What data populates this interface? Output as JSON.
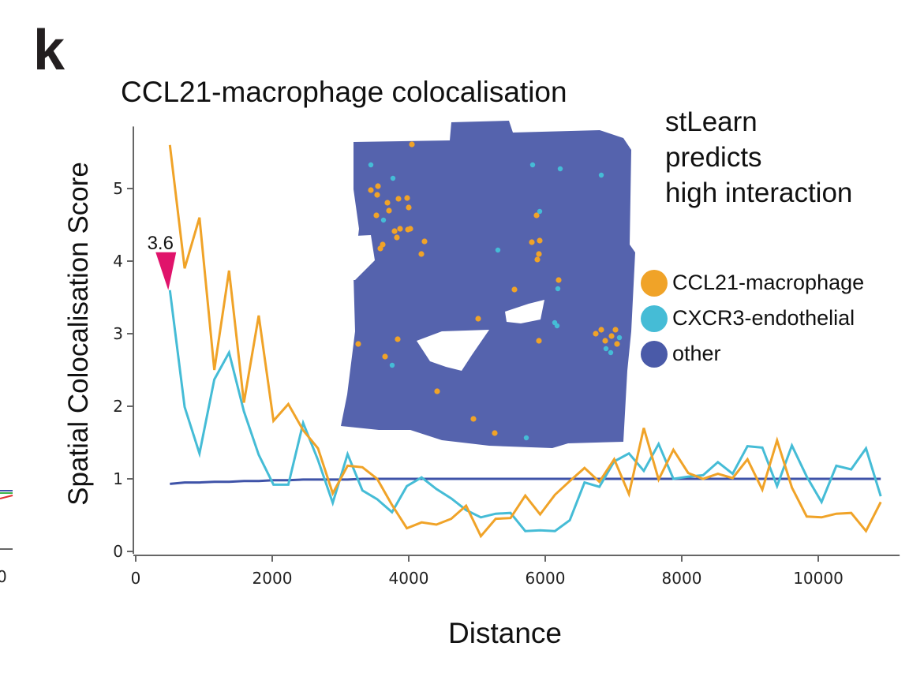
{
  "panel_letter": "k",
  "annotation": [
    "stLearn",
    "predicts",
    "high interaction"
  ],
  "colors": {
    "ccl21_macrophage": "#f0a328",
    "cxcr3_endothelial": "#45bcd6",
    "other": "#3f53a8",
    "tissue": "#5563ad",
    "callout": "#e0136b",
    "axis": "#666666"
  },
  "legend": [
    {
      "label": "CCL21-macrophage",
      "color": "#f0a328"
    },
    {
      "label": "CXCR3-endothelial",
      "color": "#45bcd6"
    },
    {
      "label": "other",
      "color": "#4a5aa8"
    }
  ],
  "chart_data": {
    "type": "line",
    "title": "CCL21-macrophage colocalisation",
    "xlabel": "Distance",
    "ylabel": "Spatial Colocalisation Score",
    "xlim": [
      0,
      11100
    ],
    "ylim": [
      0,
      5.8
    ],
    "xticks": [
      0,
      2000,
      4000,
      6000,
      8000,
      10000
    ],
    "yticks": [
      0,
      1,
      2,
      3,
      4,
      5
    ],
    "grid": false,
    "legend_position": "right",
    "x": [
      500,
      717,
      934,
      1151,
      1368,
      1585,
      1802,
      2019,
      2236,
      2453,
      2670,
      2887,
      3104,
      3321,
      3538,
      3755,
      3972,
      4189,
      4406,
      4623,
      4840,
      5057,
      5274,
      5491,
      5708,
      5925,
      6142,
      6359,
      6576,
      6793,
      7010,
      7227,
      7444,
      7661,
      7878,
      8095,
      8312,
      8529,
      8746,
      8963,
      9180,
      9397,
      9614,
      9831,
      10048,
      10265,
      10482,
      10699,
      10916
    ],
    "series": [
      {
        "name": "CCL21-macrophage",
        "values": [
          5.6,
          3.9,
          4.6,
          2.5,
          3.87,
          2.05,
          3.25,
          1.8,
          2.03,
          1.67,
          1.42,
          0.8,
          1.18,
          1.16,
          1.0,
          0.64,
          0.32,
          0.4,
          0.37,
          0.45,
          0.63,
          0.21,
          0.45,
          0.46,
          0.77,
          0.51,
          0.78,
          0.97,
          1.15,
          0.96,
          1.27,
          0.79,
          1.7,
          0.99,
          1.4,
          1.08,
          1.0,
          1.07,
          1.01,
          1.27,
          0.85,
          1.53,
          0.88,
          0.48,
          0.47,
          0.52,
          0.53,
          0.28,
          0.68
        ]
      },
      {
        "name": "CXCR3-endothelial",
        "values": [
          3.6,
          1.99,
          1.35,
          2.37,
          2.74,
          1.93,
          1.33,
          0.92,
          0.92,
          1.77,
          1.26,
          0.67,
          1.34,
          0.84,
          0.72,
          0.54,
          0.9,
          1.02,
          0.86,
          0.73,
          0.57,
          0.47,
          0.52,
          0.53,
          0.28,
          0.29,
          0.28,
          0.43,
          0.95,
          0.89,
          1.24,
          1.35,
          1.11,
          1.48,
          1.0,
          1.03,
          1.05,
          1.23,
          1.07,
          1.45,
          1.43,
          0.9,
          1.46,
          1.03,
          0.68,
          1.18,
          1.13,
          1.42,
          0.76
        ]
      },
      {
        "name": "other",
        "values": [
          0.93,
          0.95,
          0.95,
          0.96,
          0.96,
          0.97,
          0.97,
          0.98,
          0.98,
          0.99,
          0.99,
          0.99,
          0.99,
          1.0,
          1.0,
          1.0,
          1.0,
          1.0,
          1.0,
          1.0,
          1.0,
          1.0,
          1.0,
          1.0,
          1.0,
          1.0,
          1.0,
          1.0,
          1.0,
          1.0,
          1.0,
          1.0,
          1.0,
          1.0,
          1.0,
          1.0,
          1.0,
          1.0,
          1.0,
          1.0,
          1.0,
          1.0,
          1.0,
          1.0,
          1.0,
          1.0,
          1.0,
          1.0,
          1.0
        ]
      }
    ],
    "annotations": [
      {
        "text": "3.6",
        "x": 500,
        "y": 3.6,
        "marker": "downward-triangle"
      }
    ],
    "inset": {
      "description": "spatial tissue image with spots colored by cell-type pair",
      "spots_ccl21_macrophage": "orange dots",
      "spots_cxcr3_endothelial": "cyan dots",
      "background": "other"
    }
  }
}
